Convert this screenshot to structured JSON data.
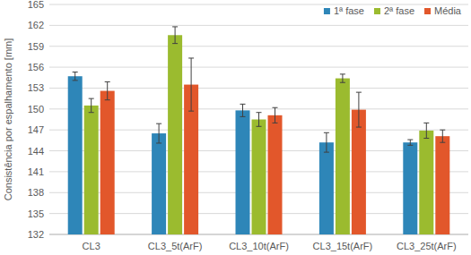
{
  "chart_data": {
    "type": "bar",
    "y_label": "Consistência por espalhamento [mm]",
    "categories": [
      "CL3",
      "CL3_5t(ArF)",
      "CL3_10t(ArF)",
      "CL3_15t(ArF)",
      "CL3_25t(ArF)"
    ],
    "series": [
      {
        "name": "1ª fase",
        "color": "#2e86b8",
        "values": [
          154.7,
          146.5,
          149.8,
          145.2,
          145.2
        ],
        "errors": [
          0.6,
          1.4,
          0.9,
          1.4,
          0.4
        ]
      },
      {
        "name": "2ª fase",
        "color": "#9bbb2f",
        "values": [
          150.5,
          160.6,
          148.5,
          154.4,
          146.9
        ],
        "errors": [
          1.0,
          1.2,
          1.0,
          0.6,
          1.1
        ]
      },
      {
        "name": "Média",
        "color": "#e2572b",
        "values": [
          152.6,
          153.5,
          149.1,
          149.9,
          146.1
        ],
        "errors": [
          1.3,
          3.8,
          1.1,
          2.5,
          0.9
        ]
      }
    ],
    "ylim": [
      132,
      165
    ],
    "yticks": [
      132,
      135,
      138,
      141,
      144,
      147,
      150,
      153,
      156,
      159,
      162,
      165
    ],
    "grid": true,
    "legend": "top-right"
  }
}
